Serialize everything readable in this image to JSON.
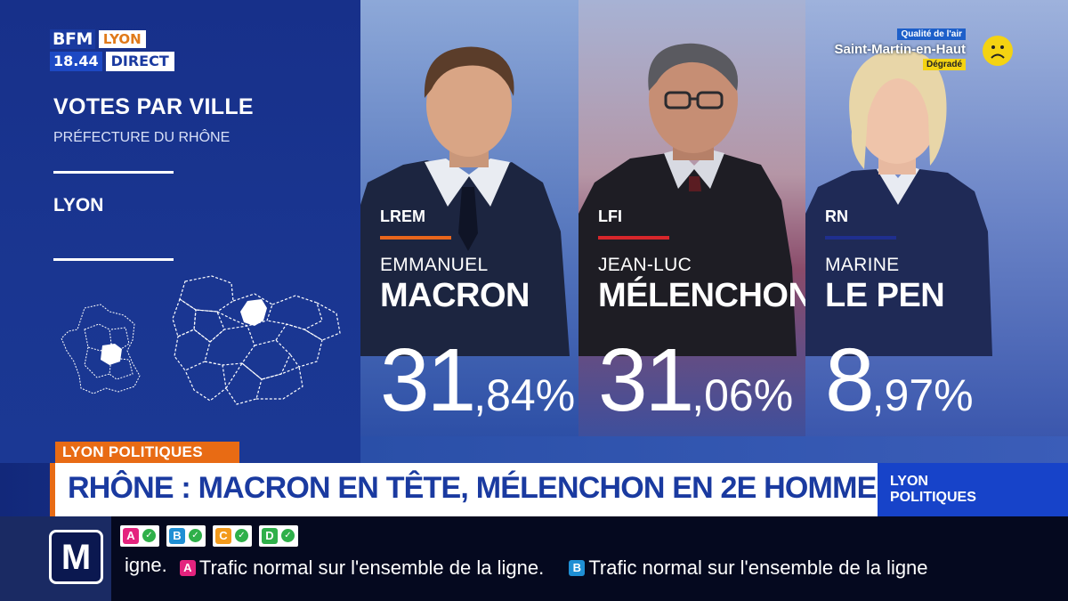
{
  "logo": {
    "channel": "BFM",
    "city": "LYON",
    "time": "18.44",
    "live": "DIRECT"
  },
  "panel": {
    "title": "VOTES PAR VILLE",
    "subtitle": "PRÉFECTURE DU RHÔNE",
    "city": "LYON"
  },
  "candidates": [
    {
      "party": "LREM",
      "party_color": "#e8661c",
      "first_name": "EMMANUEL",
      "last_name": "MACRON",
      "pct_int": "31",
      "pct_dec": ",84%",
      "share": 31.84
    },
    {
      "party": "LFI",
      "party_color": "#d7262b",
      "first_name": "JEAN-LUC",
      "last_name": "MÉLENCHON",
      "pct_int": "31",
      "pct_dec": ",06%",
      "share": 31.06
    },
    {
      "party": "RN",
      "party_color": "#1f2f8f",
      "first_name": "MARINE",
      "last_name": "LE PEN",
      "pct_int": "8",
      "pct_dec": ",97%",
      "share": 8.97
    }
  ],
  "air_quality": {
    "title": "Qualité de l'air",
    "city": "Saint-Martin-en-Haut",
    "status": "Dégradé",
    "icon": "sad-face-icon",
    "status_color": "#f4d312"
  },
  "bottom": {
    "tag": "LYON POLITIQUES",
    "headline": "RHÔNE : MACRON EN TÊTE, MÉLENCHON EN 2E HOMME",
    "show_line1": "LYON",
    "show_line2": "POLITIQUES"
  },
  "ticker": {
    "logo": "M",
    "lines": [
      {
        "letter": "A",
        "color": "#e4237e"
      },
      {
        "letter": "B",
        "color": "#1f8fd4"
      },
      {
        "letter": "C",
        "color": "#f39a1c"
      },
      {
        "letter": "D",
        "color": "#2fb04a"
      }
    ],
    "seg0": "igne.",
    "seg1_letter": "A",
    "seg1_text": "Trafic normal sur l'ensemble de la ligne.",
    "seg2_letter": "B",
    "seg2_text": "Trafic normal sur l'ensemble de la ligne"
  }
}
